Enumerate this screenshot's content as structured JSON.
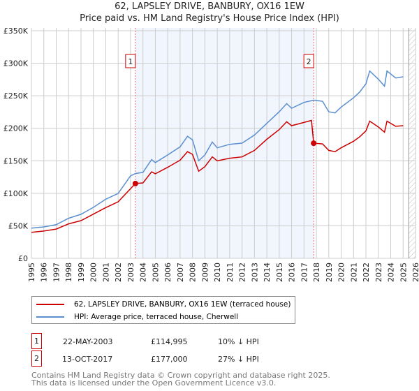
{
  "chart_data": {
    "type": "line",
    "title": "62, LAPSLEY DRIVE, BANBURY, OX16 1EW",
    "subtitle": "Price paid vs. HM Land Registry's House Price Index (HPI)",
    "xlim": [
      1995,
      2026
    ],
    "ylim": [
      0,
      350000
    ],
    "y_ticks": [
      {
        "v": 0,
        "label": "£0"
      },
      {
        "v": 50000,
        "label": "£50K"
      },
      {
        "v": 100000,
        "label": "£100K"
      },
      {
        "v": 150000,
        "label": "£150K"
      },
      {
        "v": 200000,
        "label": "£200K"
      },
      {
        "v": 250000,
        "label": "£250K"
      },
      {
        "v": 300000,
        "label": "£300K"
      },
      {
        "v": 350000,
        "label": "£350K"
      }
    ],
    "x_ticks": [
      "1995",
      "1996",
      "1997",
      "1998",
      "1999",
      "2000",
      "2001",
      "2002",
      "2003",
      "2004",
      "2005",
      "2006",
      "2007",
      "2008",
      "2009",
      "2010",
      "2011",
      "2012",
      "2013",
      "2014",
      "2015",
      "2016",
      "2017",
      "2018",
      "2019",
      "2020",
      "2021",
      "2022",
      "2023",
      "2024",
      "2025",
      "2026"
    ],
    "grid": true,
    "series": [
      {
        "name": "62, LAPSLEY DRIVE, BANBURY, OX16 1EW (terraced house)",
        "color": "#cc0000",
        "x": [
          1995,
          1996,
          1997,
          1998,
          1999,
          2000,
          2001,
          2002,
          2003.39,
          2004,
          2004.7,
          2005,
          2006,
          2007,
          2007.6,
          2008,
          2008.5,
          2009,
          2009.6,
          2010,
          2011,
          2012,
          2013,
          2014,
          2015,
          2015.6,
          2016,
          2017.6,
          2017.78,
          2018.5,
          2019,
          2019.5,
          2020,
          2021,
          2021.5,
          2022,
          2022.3,
          2023,
          2023.5,
          2023.7,
          2024.4,
          2025
        ],
        "values": [
          40000,
          42000,
          45000,
          53000,
          58000,
          68000,
          78000,
          87000,
          114995,
          116000,
          133000,
          130000,
          140000,
          151000,
          164000,
          160000,
          134000,
          141000,
          156000,
          150000,
          154000,
          156000,
          166000,
          183000,
          198000,
          210000,
          204000,
          212000,
          177000,
          176000,
          166000,
          164000,
          170000,
          180000,
          187000,
          196000,
          211000,
          202000,
          194000,
          211000,
          203000,
          204000
        ]
      },
      {
        "name": "HPI: Average price, terraced house, Cherwell",
        "color": "#5b8fd0",
        "x": [
          1995,
          1996,
          1997,
          1998,
          1999,
          2000,
          2001,
          2002,
          2003,
          2003.4,
          2004,
          2004.7,
          2005,
          2006,
          2007,
          2007.6,
          2008,
          2008.5,
          2009,
          2009.6,
          2010,
          2011,
          2012,
          2013,
          2014,
          2015,
          2015.6,
          2016,
          2017,
          2017.8,
          2018.5,
          2019,
          2019.5,
          2020,
          2021,
          2021.5,
          2022,
          2022.3,
          2023,
          2023.5,
          2023.7,
          2024.4,
          2025
        ],
        "values": [
          46500,
          48300,
          51800,
          61600,
          67700,
          78400,
          90900,
          99900,
          126800,
          130400,
          132200,
          151900,
          147200,
          159000,
          171500,
          187700,
          182300,
          150000,
          159000,
          178900,
          170000,
          175300,
          177100,
          189600,
          207500,
          225400,
          237900,
          230800,
          239700,
          243300,
          241500,
          225400,
          223600,
          232500,
          246900,
          255800,
          268400,
          288100,
          275500,
          264800,
          288100,
          277300,
          279100
        ]
      }
    ],
    "sales": [
      {
        "label": "1",
        "x": 2003.39,
        "value": 114995
      },
      {
        "label": "2",
        "x": 2017.78,
        "value": 177000
      }
    ],
    "legend_placement": "bottom"
  },
  "transactions": [
    {
      "num": "1",
      "date": "22-MAY-2003",
      "price": "£114,995",
      "delta": "10% ↓ HPI"
    },
    {
      "num": "2",
      "date": "13-OCT-2017",
      "price": "£177,000",
      "delta": "27% ↓ HPI"
    }
  ],
  "footer": {
    "line1": "Contains HM Land Registry data © Crown copyright and database right 2025.",
    "line2": "This data is licensed under the Open Government Licence v3.0."
  }
}
